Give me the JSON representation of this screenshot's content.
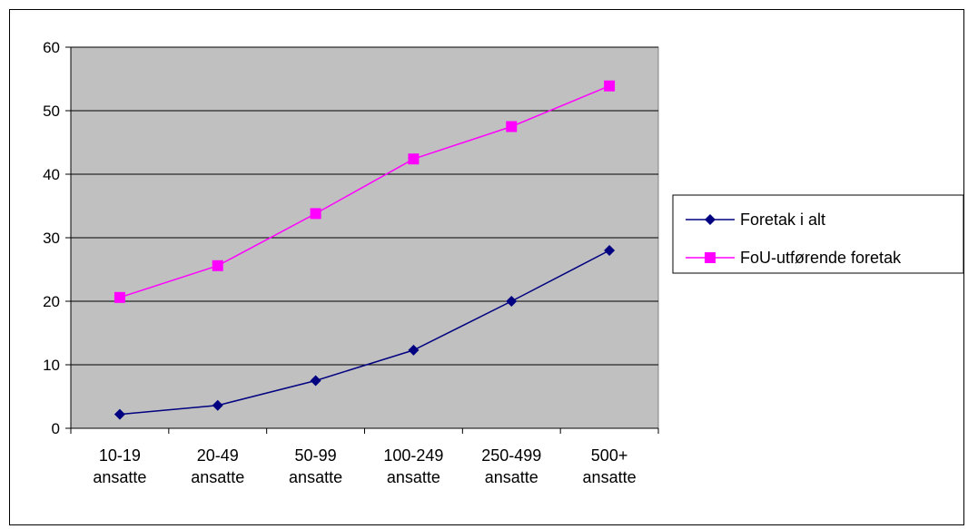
{
  "chart_data": {
    "type": "line",
    "title": "",
    "xlabel": "",
    "ylabel": "",
    "categories": [
      [
        "10-19",
        "ansatte"
      ],
      [
        "20-49",
        "ansatte"
      ],
      [
        "50-99",
        "ansatte"
      ],
      [
        "100-249",
        "ansatte"
      ],
      [
        "250-499",
        "ansatte"
      ],
      [
        "500+",
        "ansatte"
      ]
    ],
    "ylim": [
      0,
      60
    ],
    "yticks": [
      0,
      10,
      20,
      30,
      40,
      50,
      60
    ],
    "grid": true,
    "legend_position": "right",
    "plot_background": "#c0c0c0",
    "gridline_color": "#000000",
    "series": [
      {
        "name": "Foretak i alt",
        "color": "#000080",
        "marker": "diamond",
        "values": [
          2.2,
          3.6,
          7.5,
          12.3,
          20.0,
          28.0
        ]
      },
      {
        "name": "FoU-utførende foretak",
        "color": "#ff00ff",
        "marker": "square",
        "values": [
          20.6,
          25.6,
          33.8,
          42.4,
          47.5,
          53.9
        ]
      }
    ]
  }
}
